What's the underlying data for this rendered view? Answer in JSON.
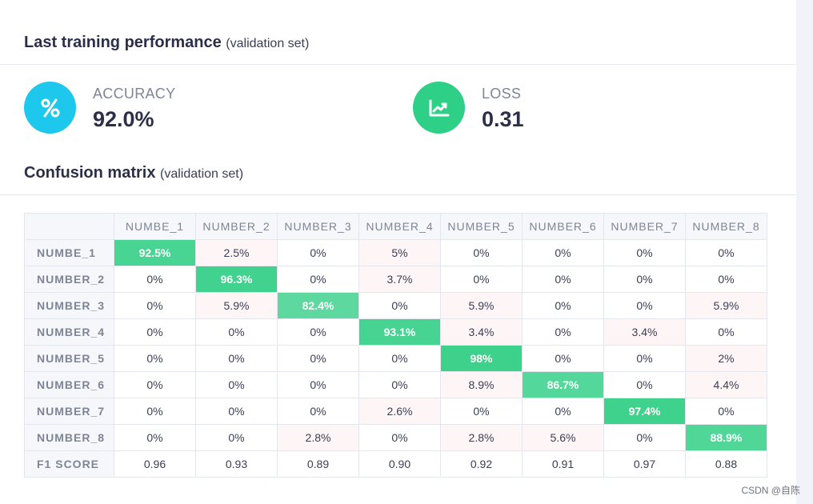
{
  "performance": {
    "title": "Last training performance",
    "subtitle": "(validation set)"
  },
  "metrics": {
    "accuracy": {
      "label": "ACCURACY",
      "value": "92.0%",
      "icon": "percent-icon",
      "color": "#1ec8ec"
    },
    "loss": {
      "label": "LOSS",
      "value": "0.31",
      "icon": "trending-chart-icon",
      "color": "#2ecf87"
    }
  },
  "confusion": {
    "title": "Confusion matrix",
    "subtitle": "(validation set)",
    "columns": [
      "NUMBE_1",
      "NUMBER_2",
      "NUMBER_3",
      "NUMBER_4",
      "NUMBER_5",
      "NUMBER_6",
      "NUMBER_7",
      "NUMBER_8"
    ],
    "rows": [
      {
        "label": "NUMBE_1",
        "cells": [
          "92.5%",
          "2.5%",
          "0%",
          "5%",
          "0%",
          "0%",
          "0%",
          "0%"
        ]
      },
      {
        "label": "NUMBER_2",
        "cells": [
          "0%",
          "96.3%",
          "0%",
          "3.7%",
          "0%",
          "0%",
          "0%",
          "0%"
        ]
      },
      {
        "label": "NUMBER_3",
        "cells": [
          "0%",
          "5.9%",
          "82.4%",
          "0%",
          "5.9%",
          "0%",
          "0%",
          "5.9%"
        ]
      },
      {
        "label": "NUMBER_4",
        "cells": [
          "0%",
          "0%",
          "0%",
          "93.1%",
          "3.4%",
          "0%",
          "3.4%",
          "0%"
        ]
      },
      {
        "label": "NUMBER_5",
        "cells": [
          "0%",
          "0%",
          "0%",
          "0%",
          "98%",
          "0%",
          "0%",
          "2%"
        ]
      },
      {
        "label": "NUMBER_6",
        "cells": [
          "0%",
          "0%",
          "0%",
          "0%",
          "8.9%",
          "86.7%",
          "0%",
          "4.4%"
        ]
      },
      {
        "label": "NUMBER_7",
        "cells": [
          "0%",
          "0%",
          "0%",
          "2.6%",
          "0%",
          "0%",
          "97.4%",
          "0%"
        ]
      },
      {
        "label": "NUMBER_8",
        "cells": [
          "0%",
          "0%",
          "2.8%",
          "0%",
          "2.8%",
          "5.6%",
          "0%",
          "88.9%"
        ]
      }
    ],
    "f1": {
      "label": "F1 SCORE",
      "values": [
        "0.96",
        "0.93",
        "0.89",
        "0.90",
        "0.92",
        "0.91",
        "0.97",
        "0.88"
      ]
    },
    "colors": {
      "diagonal": "#2ecf87",
      "offdiag_nonzero": "#fef5f6"
    }
  },
  "watermark": "CSDN @自陈"
}
